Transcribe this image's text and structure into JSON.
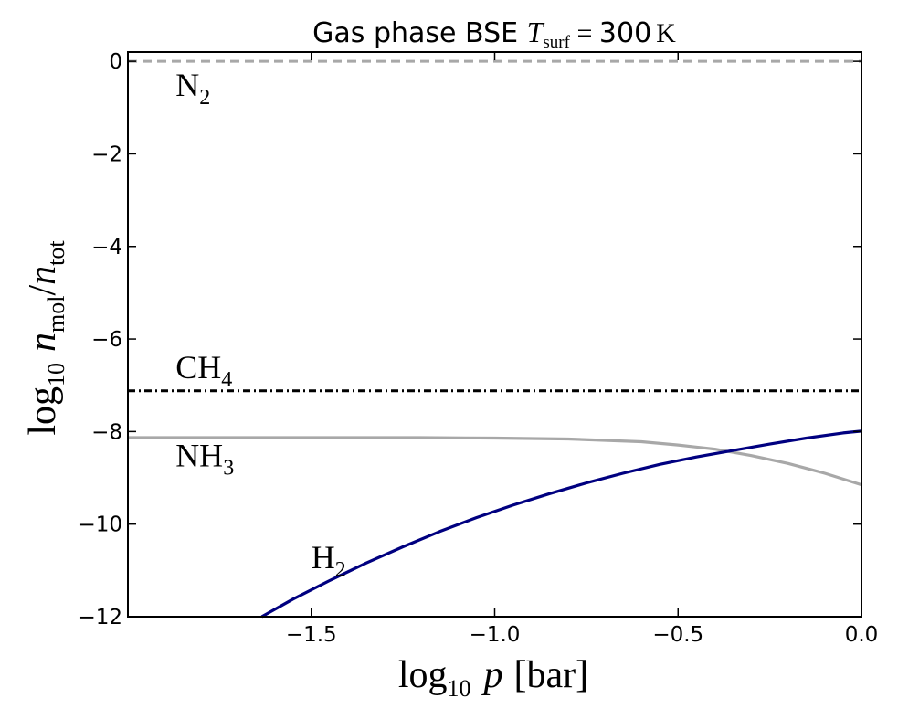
{
  "chart_data": {
    "type": "line",
    "title": {
      "prefix": "Gas phase BSE ",
      "tvar": "T",
      "tsub": "surf",
      "equals": " = ",
      "value": "300",
      "unit": "K"
    },
    "xlabel": {
      "pre": "log",
      "sub": "10",
      "var": "p",
      "unit": "[bar]"
    },
    "ylabel": {
      "pre": "log",
      "sub": "10",
      "num": "n",
      "num_sub": "mol",
      "slash": "/",
      "den": "n",
      "den_sub": "tot"
    },
    "xlim": [
      -2.0,
      0.0
    ],
    "ylim": [
      -12,
      0.2
    ],
    "x_ticks": [
      -1.5,
      -1.0,
      -0.5,
      0.0
    ],
    "x_tick_labels": [
      "−1.5",
      "−1.0",
      "−0.5",
      "0.0"
    ],
    "y_ticks": [
      0,
      -2,
      -4,
      -6,
      -8,
      -10,
      -12
    ],
    "y_tick_labels": [
      "0",
      "−2",
      "−4",
      "−6",
      "−8",
      "−10",
      "−12"
    ],
    "grid": false,
    "series": [
      {
        "name": "N2",
        "label_main": "N",
        "label_sub": "2",
        "color": "#a8a8a8",
        "style": "dashed",
        "x": [
          -2.0,
          0.0
        ],
        "y": [
          0.0,
          0.0
        ],
        "label_at": [
          -1.87,
          -0.75
        ]
      },
      {
        "name": "CH4",
        "label_main": "CH",
        "label_sub": "4",
        "color": "#000000",
        "style": "dashdot",
        "x": [
          -2.0,
          0.0
        ],
        "y": [
          -7.12,
          -7.12
        ],
        "label_at": [
          -1.87,
          -6.85
        ]
      },
      {
        "name": "NH3",
        "label_main": "NH",
        "label_sub": "3",
        "color": "#a8a8a8",
        "style": "solid",
        "x": [
          -2.0,
          -1.8,
          -1.6,
          -1.4,
          -1.2,
          -1.0,
          -0.8,
          -0.6,
          -0.5,
          -0.4,
          -0.3,
          -0.2,
          -0.1,
          0.0
        ],
        "y": [
          -8.13,
          -8.13,
          -8.13,
          -8.13,
          -8.13,
          -8.14,
          -8.16,
          -8.22,
          -8.29,
          -8.38,
          -8.52,
          -8.69,
          -8.9,
          -9.15
        ],
        "label_at": [
          -1.87,
          -8.75
        ]
      },
      {
        "name": "H2",
        "label_main": "H",
        "label_sub": "2",
        "color": "#000080",
        "style": "solid",
        "x": [
          -1.635,
          -1.55,
          -1.45,
          -1.35,
          -1.25,
          -1.15,
          -1.05,
          -0.95,
          -0.85,
          -0.75,
          -0.65,
          -0.55,
          -0.45,
          -0.35,
          -0.25,
          -0.15,
          -0.05,
          0.0
        ],
        "y": [
          -12.0,
          -11.62,
          -11.22,
          -10.84,
          -10.49,
          -10.16,
          -9.86,
          -9.59,
          -9.34,
          -9.11,
          -8.9,
          -8.71,
          -8.55,
          -8.41,
          -8.27,
          -8.14,
          -8.03,
          -7.99
        ],
        "label_at": [
          -1.5,
          -10.95
        ]
      }
    ]
  }
}
